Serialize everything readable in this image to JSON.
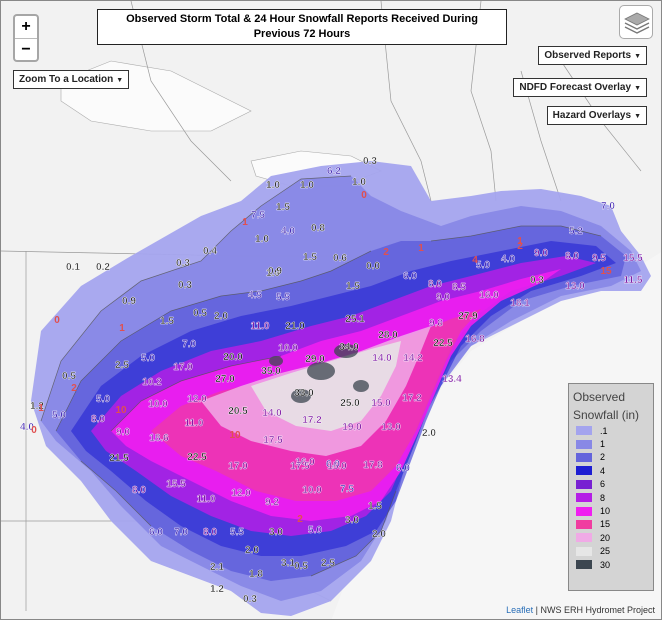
{
  "title": "Observed Storm Total & 24 Hour Snowfall Reports Received During Previous 72 Hours",
  "zoom": {
    "in": "+",
    "out": "−"
  },
  "controls": {
    "zoom_to_location": "Zoom To a Location",
    "observed_reports": "Observed Reports",
    "ndfd_overlay": "NDFD Forecast Overlay",
    "hazard_overlays": "Hazard Overlays"
  },
  "legend": {
    "title_line1": "Observed",
    "title_line2": "Snowfall (in)",
    "items": [
      {
        "label": ".1",
        "color": "#a4a4ee"
      },
      {
        "label": "1",
        "color": "#8888e6"
      },
      {
        "label": "2",
        "color": "#6464dc"
      },
      {
        "label": "4",
        "color": "#1e1ed2"
      },
      {
        "label": "6",
        "color": "#7820d2"
      },
      {
        "label": "8",
        "color": "#b41ee6"
      },
      {
        "label": "10",
        "color": "#f01ef0"
      },
      {
        "label": "15",
        "color": "#f03ca0"
      },
      {
        "label": "20",
        "color": "#f0aae6"
      },
      {
        "label": "25",
        "color": "#e6e6e6"
      },
      {
        "label": "30",
        "color": "#3c4650"
      }
    ]
  },
  "attribution": {
    "leaflet": "Leaflet",
    "credit": "| NWS ERH Hydromet Project"
  },
  "reports": [
    {
      "v": "0.3"
    },
    {
      "v": "6.2"
    },
    {
      "v": "1.0"
    },
    {
      "v": "1.0"
    },
    {
      "v": "1.0"
    },
    {
      "v": "1.5"
    },
    {
      "v": "7.5"
    },
    {
      "v": "4.0"
    },
    {
      "v": "0.8"
    },
    {
      "v": "1.0"
    },
    {
      "v": "7.0"
    },
    {
      "v": "5.2"
    },
    {
      "v": "0.1"
    },
    {
      "v": "0.2"
    },
    {
      "v": "0.3"
    },
    {
      "v": "0.4"
    },
    {
      "v": "1.0"
    },
    {
      "v": "0.9"
    },
    {
      "v": "1.5"
    },
    {
      "v": "0.6"
    },
    {
      "v": "0.0"
    },
    {
      "v": "6.0"
    },
    {
      "v": "8.0"
    },
    {
      "v": "5.0"
    },
    {
      "v": "4.0"
    },
    {
      "v": "9.0"
    },
    {
      "v": "8.0"
    },
    {
      "v": "9.5"
    },
    {
      "v": "15.5"
    },
    {
      "v": "0.3"
    },
    {
      "v": "4.5"
    },
    {
      "v": "5.5"
    },
    {
      "v": "1.5"
    },
    {
      "v": "8.5"
    },
    {
      "v": "16.0"
    },
    {
      "v": "18.1"
    },
    {
      "v": "0.3"
    },
    {
      "v": "13.0"
    },
    {
      "v": "11.5"
    },
    {
      "v": "0.9"
    },
    {
      "v": "9.0"
    },
    {
      "v": "27.9"
    },
    {
      "v": "1.5"
    },
    {
      "v": "0.5"
    },
    {
      "v": "2.0"
    },
    {
      "v": "25.1"
    },
    {
      "v": "11.0"
    },
    {
      "v": "21.0"
    },
    {
      "v": "28.0"
    },
    {
      "v": "9.8"
    },
    {
      "v": "16.8"
    },
    {
      "v": "7.0"
    },
    {
      "v": "10.0"
    },
    {
      "v": "34.0"
    },
    {
      "v": "22.5"
    },
    {
      "v": "5.0"
    },
    {
      "v": "20.0"
    },
    {
      "v": "29.0"
    },
    {
      "v": "14.0"
    },
    {
      "v": "14.2"
    },
    {
      "v": "2.5"
    },
    {
      "v": "17.0"
    },
    {
      "v": "35.0"
    },
    {
      "v": "13.4"
    },
    {
      "v": "0.5"
    },
    {
      "v": "10.2"
    },
    {
      "v": "27.0"
    },
    {
      "v": "33.0"
    },
    {
      "v": "5.0"
    },
    {
      "v": "12.0"
    },
    {
      "v": "25.0"
    },
    {
      "v": "15.0"
    },
    {
      "v": "17.2"
    },
    {
      "v": "1.2"
    },
    {
      "v": "10.0"
    },
    {
      "v": "20.5"
    },
    {
      "v": "14.0"
    },
    {
      "v": "5.0"
    },
    {
      "v": "8.0"
    },
    {
      "v": "11.0"
    },
    {
      "v": "17.2"
    },
    {
      "v": "19.0"
    },
    {
      "v": "13.0"
    },
    {
      "v": "4.0"
    },
    {
      "v": "9.0"
    },
    {
      "v": "18.6"
    },
    {
      "v": "17.5"
    },
    {
      "v": "2.0"
    },
    {
      "v": "21.5"
    },
    {
      "v": "22.5"
    },
    {
      "v": "17.0"
    },
    {
      "v": "16.0"
    },
    {
      "v": "6.0"
    },
    {
      "v": "17.8"
    },
    {
      "v": "17.5"
    },
    {
      "v": "15.0"
    },
    {
      "v": "15.5"
    },
    {
      "v": "8.0"
    },
    {
      "v": "12.0"
    },
    {
      "v": "10.0"
    },
    {
      "v": "7.5"
    },
    {
      "v": "11.0"
    },
    {
      "v": "9.2"
    },
    {
      "v": "1.5"
    },
    {
      "v": "6.0"
    },
    {
      "v": "6.0"
    },
    {
      "v": "7.0"
    },
    {
      "v": "8.0"
    },
    {
      "v": "5.5"
    },
    {
      "v": "3.0"
    },
    {
      "v": "5.0"
    },
    {
      "v": "2.0"
    },
    {
      "v": "3.0"
    },
    {
      "v": "2.0"
    },
    {
      "v": "3.1"
    },
    {
      "v": "2.1"
    },
    {
      "v": "1.8"
    },
    {
      "v": "0.5"
    },
    {
      "v": "2.5"
    },
    {
      "v": "1.2"
    },
    {
      "v": "0.3"
    }
  ],
  "contour_labels": [
    "0",
    "1",
    "2",
    "1",
    "0",
    "1",
    "2",
    "1",
    "0",
    "10",
    "1",
    "2",
    "4",
    "10",
    "2",
    "15"
  ]
}
